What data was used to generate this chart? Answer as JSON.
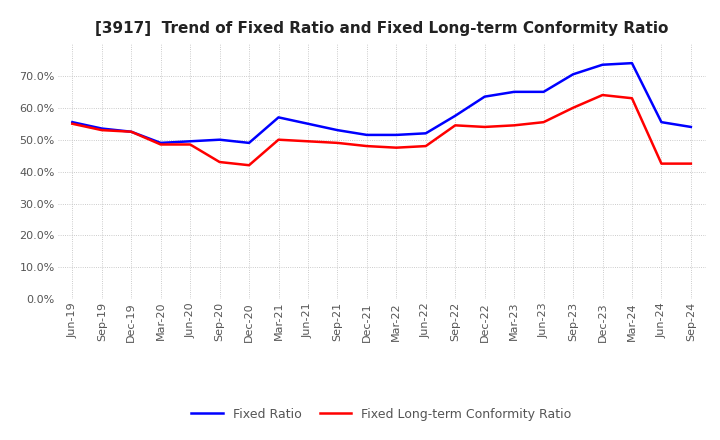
{
  "title": "[3917]  Trend of Fixed Ratio and Fixed Long-term Conformity Ratio",
  "x_labels": [
    "Jun-19",
    "Sep-19",
    "Dec-19",
    "Mar-20",
    "Jun-20",
    "Sep-20",
    "Dec-20",
    "Mar-21",
    "Jun-21",
    "Sep-21",
    "Dec-21",
    "Mar-22",
    "Jun-22",
    "Sep-22",
    "Dec-22",
    "Mar-23",
    "Jun-23",
    "Sep-23",
    "Dec-23",
    "Mar-24",
    "Jun-24",
    "Sep-24"
  ],
  "fixed_ratio": [
    55.5,
    53.5,
    52.5,
    49.0,
    49.5,
    50.0,
    49.0,
    57.0,
    55.0,
    53.0,
    51.5,
    51.5,
    52.0,
    57.5,
    63.5,
    65.0,
    65.0,
    70.5,
    73.5,
    74.0,
    55.5,
    54.0
  ],
  "fixed_lt_ratio": [
    55.0,
    53.0,
    52.5,
    48.5,
    48.5,
    43.0,
    42.0,
    50.0,
    49.5,
    49.0,
    48.0,
    47.5,
    48.0,
    54.5,
    54.0,
    54.5,
    55.5,
    60.0,
    64.0,
    63.0,
    42.5,
    42.5
  ],
  "fixed_ratio_color": "#0000FF",
  "fixed_lt_ratio_color": "#FF0000",
  "ylim": [
    0,
    80
  ],
  "yticks": [
    0,
    10,
    20,
    30,
    40,
    50,
    60,
    70
  ],
  "background_color": "#FFFFFF",
  "plot_bg_color": "#FFFFFF",
  "grid_color": "#BBBBBB",
  "legend_fixed_ratio": "Fixed Ratio",
  "legend_fixed_lt_ratio": "Fixed Long-term Conformity Ratio",
  "title_fontsize": 11,
  "tick_fontsize": 8,
  "legend_fontsize": 9
}
